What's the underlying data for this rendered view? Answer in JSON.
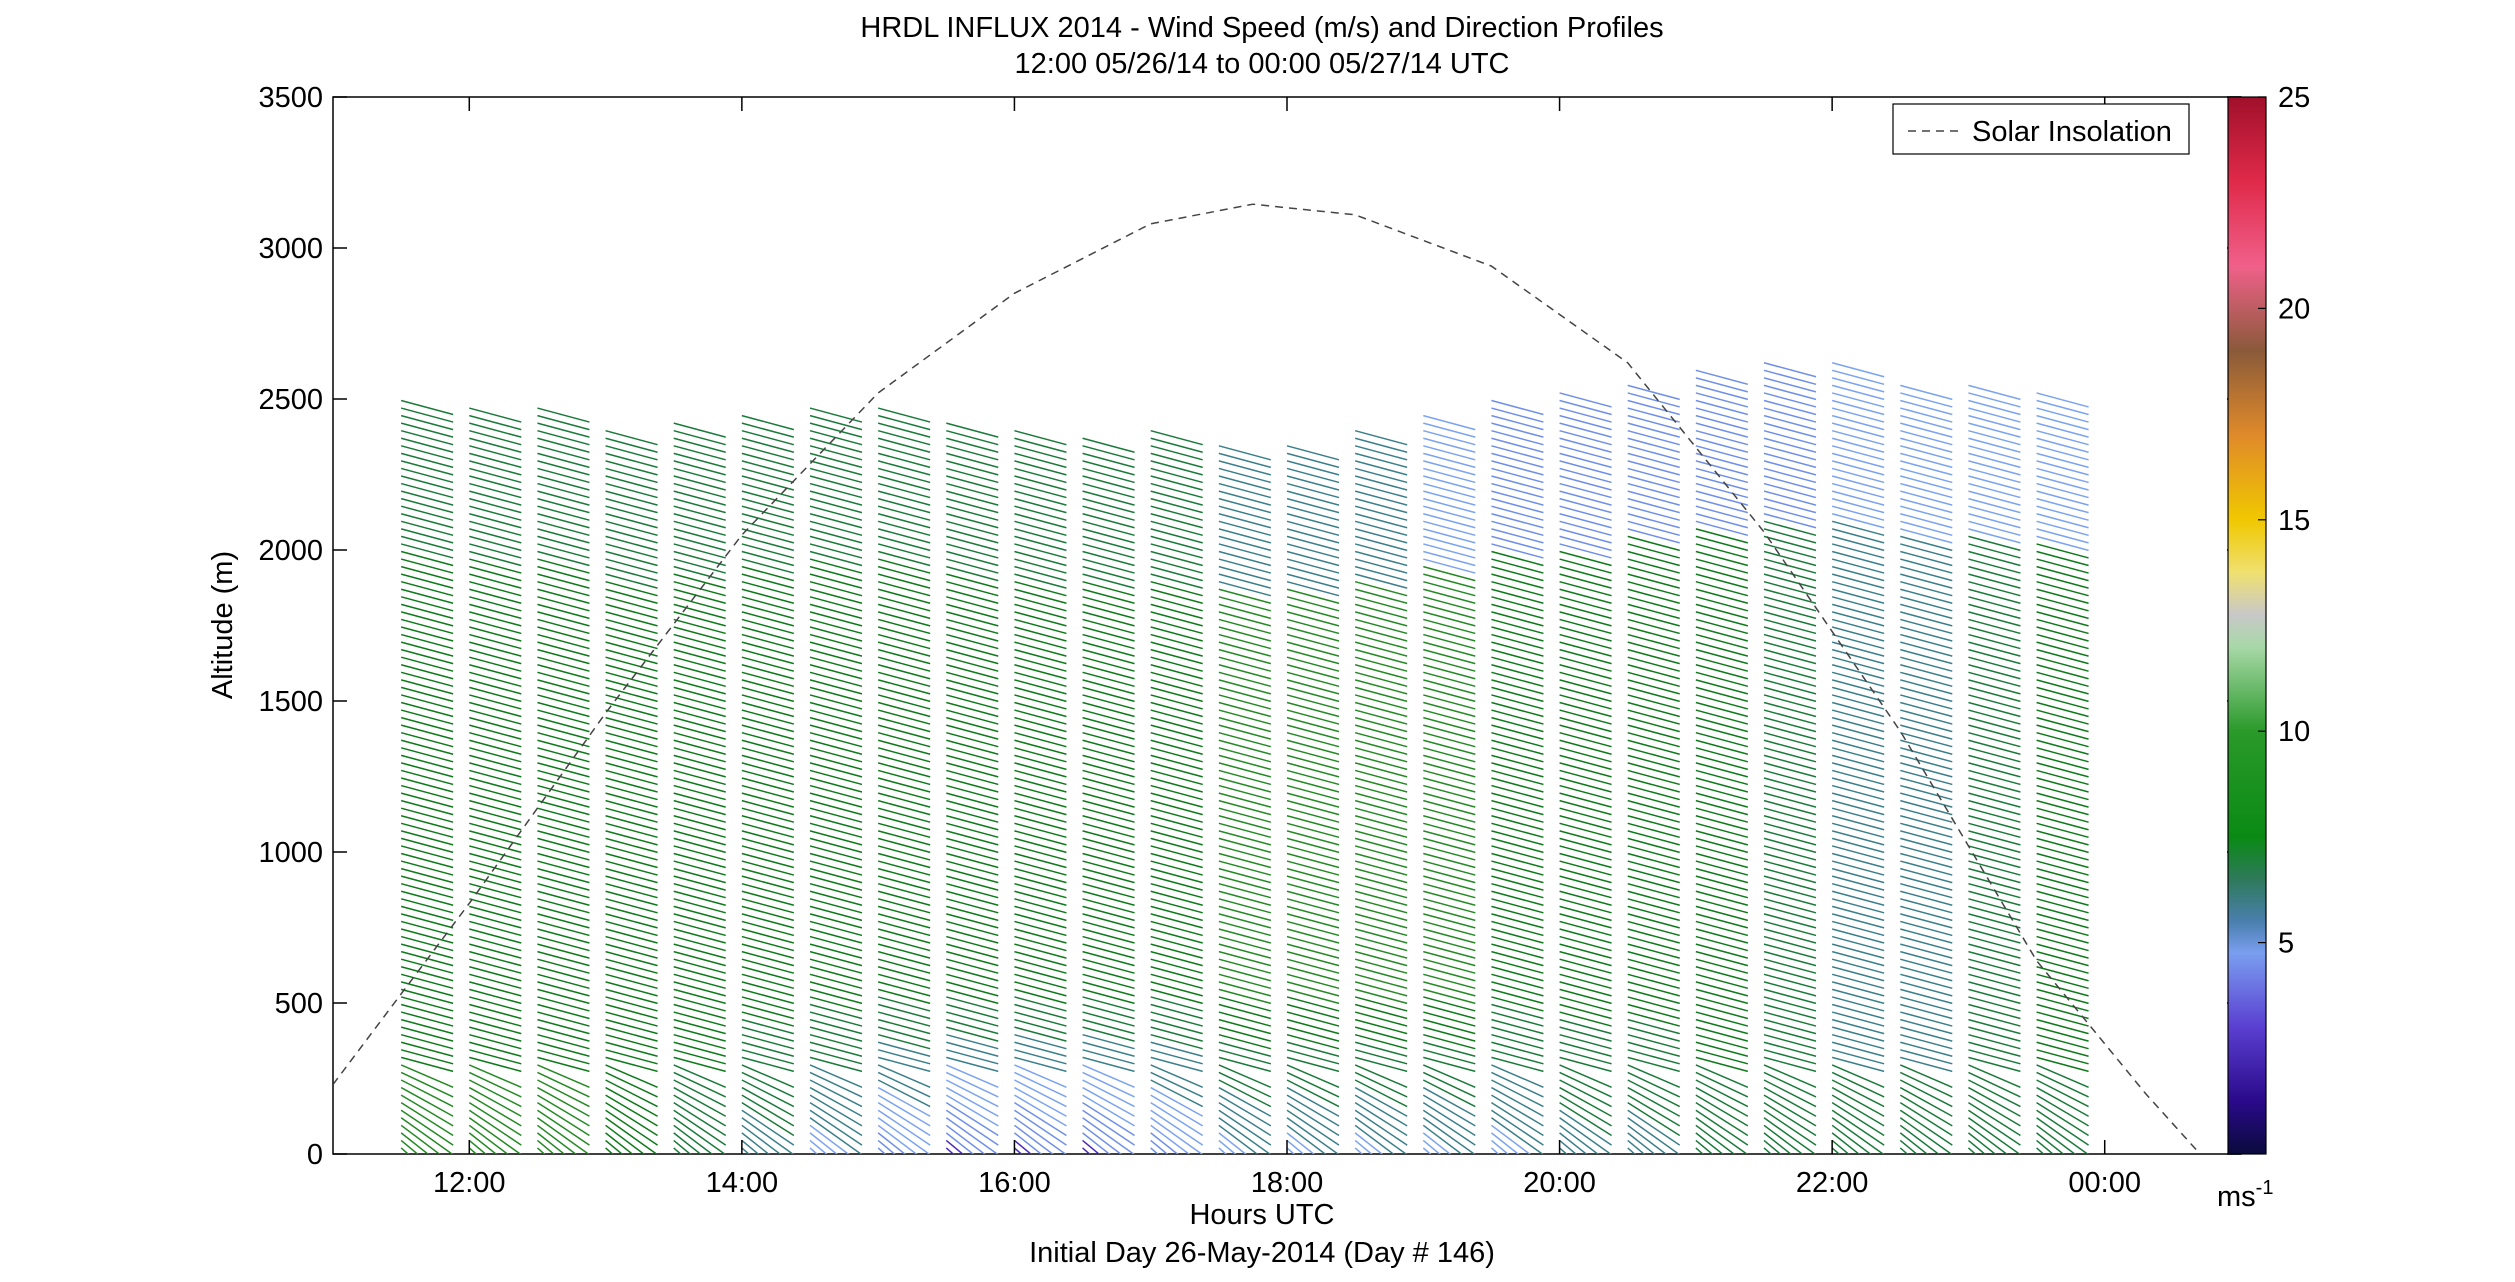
{
  "chart_data": {
    "type": "wind-barb-profile",
    "title": "HRDL INFLUX 2014 - Wind Speed (m/s) and Direction Profiles",
    "subtitle": "12:00 05/26/14 to 00:00 05/27/14  UTC",
    "xlabel": "Hours UTC",
    "xlabel2": "Initial Day 26-May-2014 (Day # 146)",
    "ylabel": "Altitude (m)",
    "xlim": [
      11.0,
      25.0
    ],
    "ylim": [
      0,
      3500
    ],
    "xticks": [
      12,
      14,
      16,
      18,
      20,
      22,
      24
    ],
    "xtick_labels": [
      "12:00",
      "14:00",
      "16:00",
      "18:00",
      "20:00",
      "22:00",
      "00:00"
    ],
    "yticks": [
      0,
      500,
      1000,
      1500,
      2000,
      2500,
      3000,
      3500
    ],
    "ytick_labels": [
      "0",
      "500",
      "1000",
      "1500",
      "2000",
      "2500",
      "3000",
      "3500"
    ],
    "legend": {
      "entries": [
        "Solar Insolation"
      ],
      "location": "top-right"
    },
    "colorbar": {
      "range": [
        0,
        25
      ],
      "ticks": [
        5,
        10,
        15,
        20,
        25
      ],
      "tick_labels": [
        "5",
        "10",
        "15",
        "20",
        "25"
      ],
      "unit_label": "ms",
      "unit_exponent": "-1"
    },
    "solar_insolation": {
      "style": "dashed",
      "x": [
        11.0,
        12.0,
        13.0,
        14.0,
        15.0,
        16.0,
        17.0,
        17.75,
        18.5,
        19.5,
        20.5,
        21.5,
        22.5,
        23.5,
        24.3,
        24.7
      ],
      "y": [
        230,
        830,
        1460,
        2050,
        2520,
        2850,
        3080,
        3145,
        3110,
        2940,
        2620,
        2060,
        1400,
        640,
        200,
        0
      ]
    },
    "profiles": {
      "times": [
        11.5,
        12.0,
        12.5,
        13.0,
        13.5,
        14.0,
        14.5,
        15.0,
        15.5,
        16.0,
        16.5,
        17.0,
        17.5,
        18.0,
        18.5,
        19.0,
        19.5,
        20.0,
        20.5,
        21.0,
        21.5,
        22.0,
        22.5,
        23.0,
        23.5
      ],
      "top_altitude_m": [
        2500,
        2470,
        2480,
        2400,
        2430,
        2460,
        2480,
        2470,
        2420,
        2400,
        2390,
        2400,
        2360,
        2350,
        2400,
        2450,
        2500,
        2520,
        2560,
        2600,
        2620,
        2620,
        2560,
        2560,
        2530
      ],
      "low_level_speed_ms": [
        9,
        9,
        9,
        8,
        7,
        6,
        5,
        4,
        3,
        3,
        3,
        4,
        5,
        5,
        5,
        5,
        5,
        6,
        6,
        7,
        7,
        7,
        7,
        7,
        7
      ],
      "mid_level_speed_ms": [
        8,
        8,
        8,
        8,
        8,
        8,
        8,
        8,
        8,
        8,
        8,
        8,
        9,
        9,
        9,
        9,
        8,
        8,
        8,
        8,
        7,
        6,
        6,
        7,
        8
      ],
      "upper_level_speed_ms": [
        7,
        7,
        7,
        7,
        7,
        7,
        7,
        7,
        7,
        7,
        7,
        7,
        6,
        6,
        6,
        5,
        4,
        4,
        4,
        4,
        4,
        5,
        5,
        5,
        5
      ]
    }
  }
}
